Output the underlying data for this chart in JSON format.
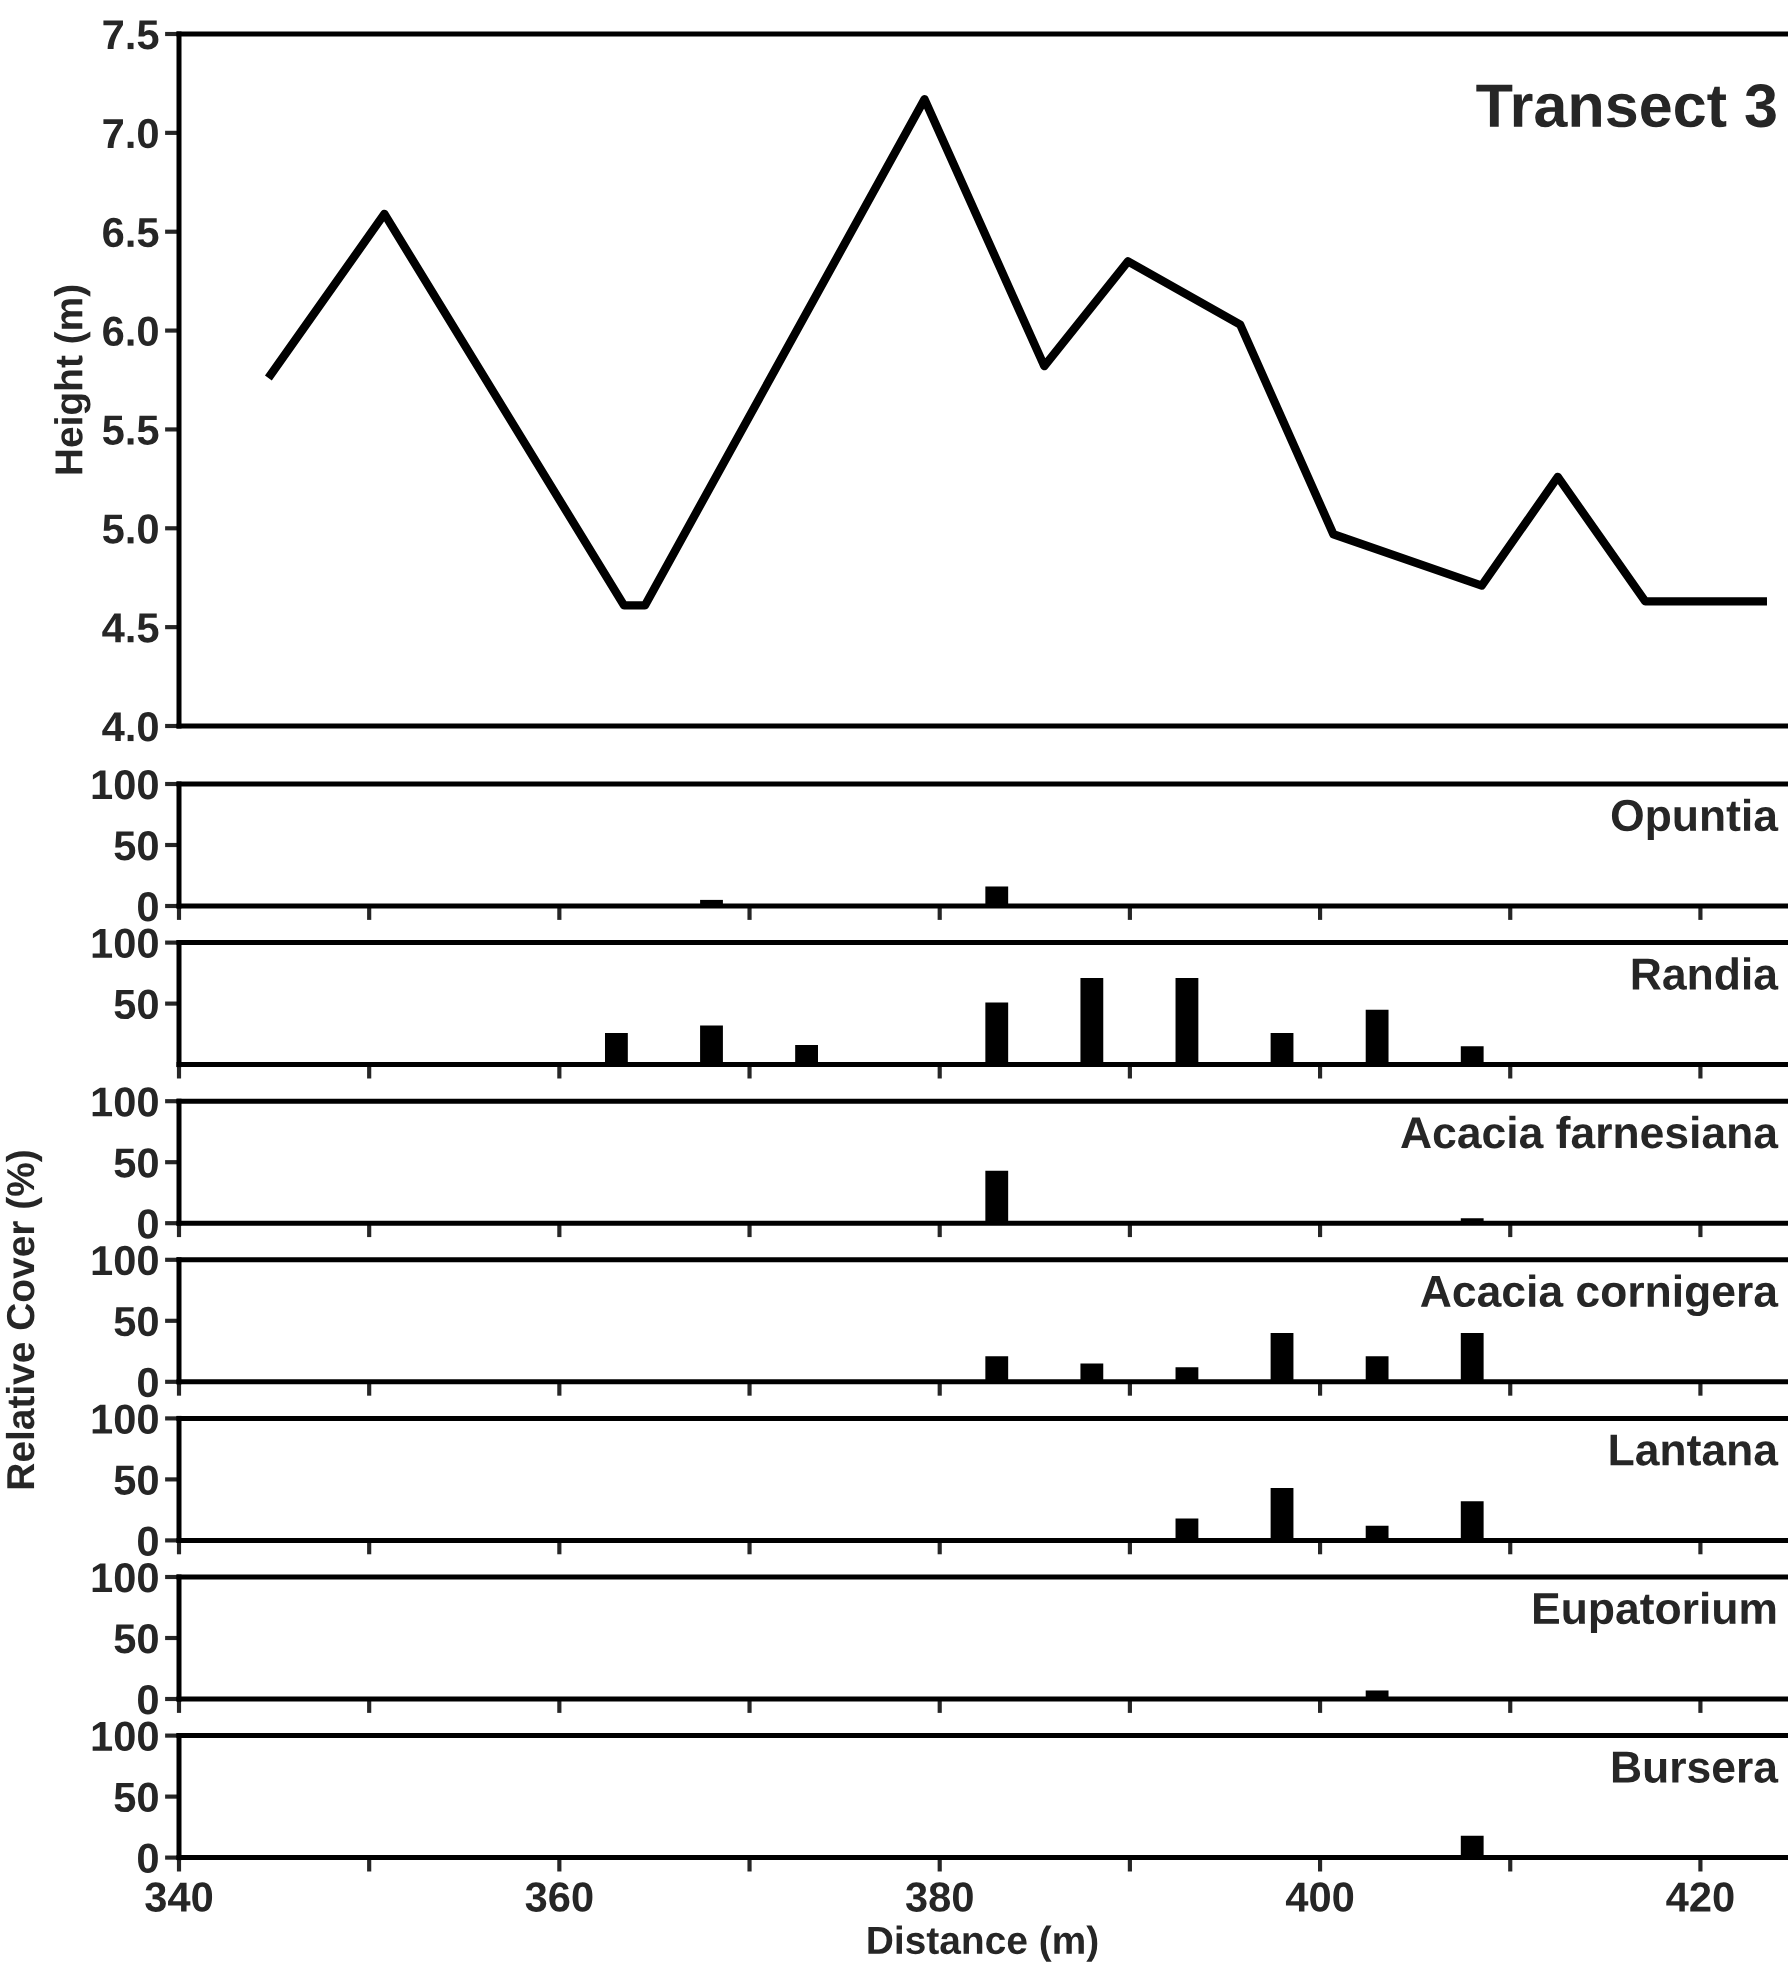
{
  "chart_data": [
    {
      "type": "line",
      "title": "Transect 3",
      "ylabel": "Height (m)",
      "color": "#000000",
      "tick_labels": "y",
      "x": [
        344.7,
        350.8,
        363.4,
        364.5,
        379.2,
        385.5,
        389.9,
        395.8,
        400.7,
        408.5,
        412.5,
        417.1,
        423.5
      ],
      "values": [
        5.76,
        6.59,
        4.61,
        4.61,
        7.17,
        5.82,
        6.35,
        6.03,
        4.97,
        4.71,
        5.26,
        4.63,
        4.63
      ],
      "xlim": [
        340,
        424.5
      ],
      "ylim": [
        4,
        7.5
      ],
      "yticks": [
        {
          "value": 4,
          "label": "4.0"
        },
        4.5,
        {
          "value": 5,
          "label": "5.0"
        },
        5.5,
        {
          "value": 6,
          "label": "6.0"
        },
        6.5,
        {
          "value": 7,
          "label": "7.0"
        },
        7.5
      ]
    },
    {
      "type": "bar",
      "title": "Opuntia",
      "color": "#000000",
      "tick_labels": "y",
      "x": [
        368,
        383
      ],
      "values": [
        5,
        16
      ],
      "xlim": [
        340,
        424.5
      ],
      "ylim": [
        0,
        100
      ],
      "yticks": [
        0,
        50,
        100
      ],
      "xticks": [
        340,
        {
          "value": 350,
          "label": null
        },
        360,
        {
          "value": 370,
          "label": null
        },
        380,
        {
          "value": 390,
          "label": null
        },
        400,
        {
          "value": 410,
          "label": null
        },
        420
      ]
    },
    {
      "type": "bar",
      "title": "Randia",
      "color": "#000000",
      "tick_labels": "y",
      "x": [
        363,
        368,
        373,
        383,
        388,
        393,
        398,
        403,
        408
      ],
      "values": [
        26,
        32,
        16,
        51,
        71,
        71,
        26,
        45,
        15
      ],
      "xlim": [
        340,
        424.5
      ],
      "ylim": [
        0,
        100
      ],
      "yticks": [
        50,
        100
      ],
      "xticks": [
        340,
        {
          "value": 350,
          "label": null
        },
        360,
        {
          "value": 370,
          "label": null
        },
        380,
        {
          "value": 390,
          "label": null
        },
        400,
        {
          "value": 410,
          "label": null
        },
        420
      ]
    },
    {
      "type": "bar",
      "title": "Acacia farnesiana",
      "color": "#000000",
      "tick_labels": "y",
      "x": [
        383,
        408
      ],
      "values": [
        43,
        4
      ],
      "xlim": [
        340,
        424.5
      ],
      "ylim": [
        0,
        100
      ],
      "yticks": [
        0,
        50,
        100
      ],
      "xticks": [
        340,
        {
          "value": 350,
          "label": null
        },
        360,
        {
          "value": 370,
          "label": null
        },
        380,
        {
          "value": 390,
          "label": null
        },
        400,
        {
          "value": 410,
          "label": null
        },
        420
      ]
    },
    {
      "type": "bar",
      "title": "Acacia cornigera",
      "ylabel": "Relative Cover (%)",
      "color": "#000000",
      "tick_labels": "y",
      "x": [
        383,
        388,
        393,
        398,
        403,
        408
      ],
      "values": [
        21,
        15,
        12,
        40,
        21,
        40
      ],
      "xlim": [
        340,
        424.5
      ],
      "ylim": [
        0,
        100
      ],
      "yticks": [
        0,
        50,
        100
      ],
      "xticks": [
        340,
        {
          "value": 350,
          "label": null
        },
        360,
        {
          "value": 370,
          "label": null
        },
        380,
        {
          "value": 390,
          "label": null
        },
        400,
        {
          "value": 410,
          "label": null
        },
        420
      ]
    },
    {
      "type": "bar",
      "title": "Lantana",
      "color": "#000000",
      "tick_labels": "y",
      "x": [
        393,
        398,
        403,
        408
      ],
      "values": [
        18,
        43,
        12,
        32
      ],
      "xlim": [
        340,
        424.5
      ],
      "ylim": [
        0,
        100
      ],
      "yticks": [
        0,
        50,
        100
      ],
      "xticks": [
        340,
        {
          "value": 350,
          "label": null
        },
        360,
        {
          "value": 370,
          "label": null
        },
        380,
        {
          "value": 390,
          "label": null
        },
        400,
        {
          "value": 410,
          "label": null
        },
        420
      ]
    },
    {
      "type": "bar",
      "title": "Eupatorium",
      "color": "#000000",
      "tick_labels": "y",
      "x": [
        403
      ],
      "values": [
        7
      ],
      "xlim": [
        340,
        424.5
      ],
      "ylim": [
        0,
        100
      ],
      "yticks": [
        0,
        50,
        100
      ],
      "xticks": [
        340,
        {
          "value": 350,
          "label": null
        },
        360,
        {
          "value": 370,
          "label": null
        },
        380,
        {
          "value": 390,
          "label": null
        },
        400,
        {
          "value": 410,
          "label": null
        },
        420
      ]
    },
    {
      "type": "bar",
      "title": "Bursera",
      "xlabel": "Distance (m)",
      "color": "#000000",
      "x": [
        408
      ],
      "values": [
        18
      ],
      "xlim": [
        340,
        424.5
      ],
      "ylim": [
        0,
        100
      ],
      "yticks": [
        0,
        50,
        100
      ],
      "xticks": [
        340,
        {
          "value": 350,
          "label": null
        },
        360,
        {
          "value": 370,
          "label": null
        },
        380,
        {
          "value": 390,
          "label": null
        },
        400,
        {
          "value": 410,
          "label": null
        },
        420
      ]
    }
  ]
}
